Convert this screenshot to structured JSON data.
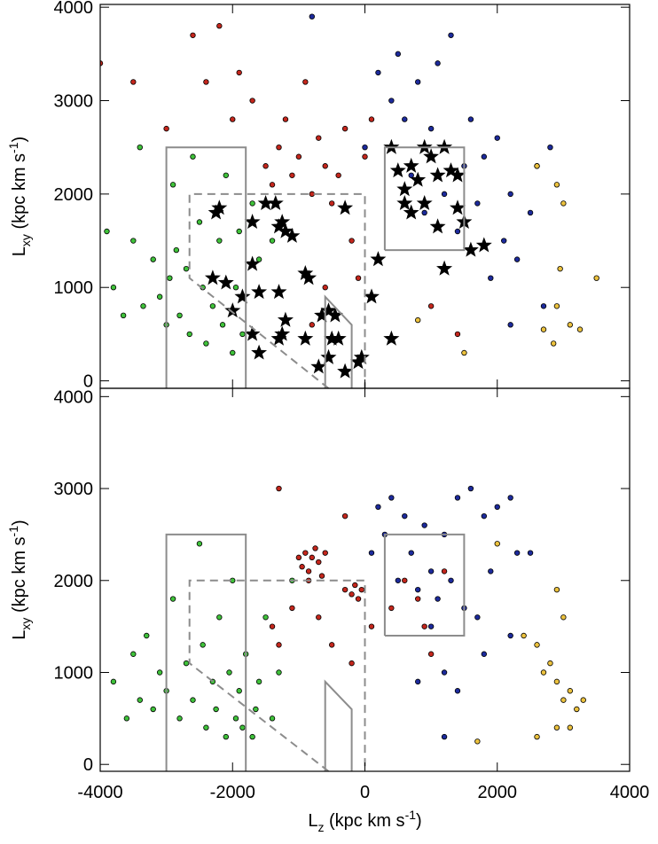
{
  "chart_data": [
    {
      "type": "scatter",
      "xlim": [
        -4000,
        4000
      ],
      "ylim": [
        -80,
        4030
      ],
      "xticks": [
        -4000,
        -2000,
        0,
        2000,
        4000
      ],
      "xtick_labels": false,
      "yticks": [
        0,
        1000,
        2000,
        3000,
        4000
      ],
      "ylabel": [
        "L",
        "xy",
        " (kpc km s",
        "-1",
        ")"
      ],
      "regions": [
        {
          "dash": false,
          "x": [
            -3000,
            -3000,
            -1800,
            -1800
          ],
          "y": [
            -80,
            2500,
            2500,
            -80
          ]
        },
        {
          "dash": true,
          "x": [
            -550,
            -2650,
            -2650,
            0,
            0
          ],
          "y": [
            -80,
            1100,
            2000,
            2000,
            -80
          ]
        },
        {
          "dash": false,
          "x": [
            -600,
            -600,
            -200,
            -200
          ],
          "y": [
            -80,
            900,
            600,
            -80
          ]
        },
        {
          "dash": false,
          "x": [
            300,
            300,
            1500,
            1500,
            300
          ],
          "y": [
            1400,
            2500,
            2500,
            1400,
            1400
          ]
        }
      ],
      "series": [
        {
          "color": "#3fc23a",
          "marker": "circle",
          "x": [
            -3900,
            -3800,
            -3650,
            -3500,
            -3400,
            -3350,
            -3200,
            -3100,
            -3000,
            -2950,
            -2900,
            -2850,
            -2800,
            -2700,
            -2650,
            -2600,
            -2500,
            -2450,
            -2400,
            -2300,
            -2200,
            -2150,
            -2100,
            -2000,
            -1950,
            -1900,
            -1850,
            -1700,
            -1600,
            -1400
          ],
          "values": [
            1600,
            1000,
            700,
            1500,
            2500,
            800,
            1300,
            900,
            600,
            1100,
            2100,
            1400,
            700,
            1200,
            500,
            2400,
            1700,
            1000,
            400,
            800,
            1500,
            600,
            2200,
            300,
            1000,
            1600,
            500,
            1900,
            1300,
            1500
          ]
        },
        {
          "color": "#c4261c",
          "marker": "circle",
          "x": [
            -4000,
            -3500,
            -3000,
            -2600,
            -2400,
            -2200,
            -2000,
            -1900,
            -1700,
            -1500,
            -1400,
            -1300,
            -1200,
            -1100,
            -1000,
            -900,
            -800,
            -700,
            -600,
            -500,
            -400,
            -300,
            -200,
            -100,
            0,
            100,
            -600,
            -800,
            1000,
            1400
          ],
          "values": [
            3400,
            3200,
            2700,
            3700,
            3200,
            3800,
            2800,
            3300,
            3000,
            2300,
            2100,
            2500,
            2800,
            2200,
            2400,
            3200,
            2000,
            2600,
            2300,
            1900,
            2200,
            2700,
            1500,
            1100,
            2400,
            2800,
            1000,
            600,
            800,
            500
          ]
        },
        {
          "color": "#1c2a9c",
          "marker": "circle",
          "x": [
            -800,
            0,
            200,
            400,
            500,
            600,
            700,
            800,
            900,
            1000,
            1100,
            1200,
            1300,
            1400,
            1500,
            1600,
            1700,
            1800,
            1900,
            2000,
            2100,
            2200,
            2300,
            2500,
            2600,
            2700,
            2800,
            2200
          ],
          "values": [
            3900,
            2500,
            3300,
            3000,
            3500,
            2800,
            2200,
            3200,
            1800,
            2700,
            3400,
            2000,
            3700,
            1600,
            2300,
            2800,
            1900,
            2400,
            1100,
            2600,
            1500,
            2000,
            1300,
            1800,
            2300,
            800,
            2500,
            600
          ]
        },
        {
          "color": "#ecc23e",
          "marker": "circle",
          "x": [
            2600,
            2900,
            2950,
            2900,
            3000,
            3100,
            2700,
            2850,
            3250,
            3500,
            800,
            1500
          ],
          "values": [
            2300,
            2100,
            1200,
            800,
            1900,
            600,
            550,
            400,
            550,
            1100,
            650,
            300
          ]
        },
        {
          "color": "#000000",
          "marker": "star",
          "x": [
            -2250,
            -2200,
            -1700,
            -1500,
            -1350,
            -1300,
            -1250,
            -1200,
            -1100,
            -1700,
            -2300,
            -2100,
            -2000,
            -1850,
            -1600,
            -1300,
            -900,
            -850,
            -1200,
            -1300,
            -1250,
            -1700,
            -1600,
            -900,
            -650,
            -550,
            -450,
            -500,
            -400,
            -550,
            -300,
            -700,
            -100,
            -50,
            -300,
            200,
            400,
            500,
            600,
            700,
            800,
            900,
            1000,
            1100,
            1200,
            1300,
            1400,
            700,
            900,
            600,
            1200,
            1600,
            1100,
            1400,
            1500,
            1800,
            100,
            400
          ],
          "values": [
            1800,
            1850,
            1700,
            1900,
            1900,
            1650,
            1700,
            1600,
            1550,
            1250,
            1100,
            1050,
            750,
            900,
            950,
            950,
            1150,
            1100,
            650,
            450,
            500,
            500,
            300,
            450,
            700,
            750,
            700,
            450,
            450,
            250,
            100,
            150,
            200,
            250,
            1850,
            1300,
            2500,
            2250,
            2050,
            2300,
            2150,
            2500,
            2400,
            2200,
            2500,
            2250,
            2200,
            1800,
            1900,
            1900,
            1200,
            1400,
            1650,
            1850,
            1700,
            1450,
            900,
            450
          ]
        }
      ]
    },
    {
      "type": "scatter",
      "xlim": [
        -4000,
        4000
      ],
      "ylim": [
        -75,
        4090
      ],
      "xticks": [
        -4000,
        -2000,
        0,
        2000,
        4000
      ],
      "xtick_labels": true,
      "yticks": [
        0,
        1000,
        2000,
        3000,
        4000
      ],
      "ylabel": [
        "L",
        "xy",
        " (kpc km s",
        "-1",
        ")"
      ],
      "xlabel": [
        "L",
        "z",
        " (kpc km s",
        "-1",
        ")"
      ],
      "regions": [
        {
          "dash": false,
          "x": [
            -3000,
            -3000,
            -1800,
            -1800
          ],
          "y": [
            -75,
            2500,
            2500,
            -75
          ]
        },
        {
          "dash": true,
          "x": [
            -550,
            -2650,
            -2650,
            0,
            0
          ],
          "y": [
            -75,
            1100,
            2000,
            2000,
            -75
          ]
        },
        {
          "dash": false,
          "x": [
            -600,
            -600,
            -200,
            -200
          ],
          "y": [
            -75,
            900,
            600,
            -75
          ]
        },
        {
          "dash": false,
          "x": [
            300,
            300,
            1500,
            1500,
            300
          ],
          "y": [
            1400,
            2500,
            2500,
            1400,
            1400
          ]
        }
      ],
      "series": [
        {
          "color": "#3fc23a",
          "marker": "circle",
          "x": [
            -3800,
            -3600,
            -3500,
            -3400,
            -3300,
            -3200,
            -3100,
            -3000,
            -2900,
            -2800,
            -2700,
            -2600,
            -2500,
            -2450,
            -2400,
            -2300,
            -2250,
            -2200,
            -2100,
            -2050,
            -2000,
            -1950,
            -1900,
            -1850,
            -1800,
            -1700,
            -1650,
            -1600,
            -1500,
            -1400,
            -1300,
            -1100
          ],
          "values": [
            900,
            500,
            1200,
            700,
            1400,
            600,
            1000,
            800,
            1800,
            500,
            1100,
            700,
            2400,
            1300,
            400,
            900,
            600,
            1600,
            300,
            1000,
            2000,
            500,
            800,
            400,
            1200,
            300,
            600,
            900,
            1600,
            500,
            1000,
            2000
          ]
        },
        {
          "color": "#c4261c",
          "marker": "circle",
          "x": [
            -1000,
            -950,
            -900,
            -850,
            -800,
            -750,
            -700,
            -650,
            -600,
            -850,
            -300,
            -200,
            -150,
            -100,
            -50,
            -1300,
            -1400,
            -1100,
            -700,
            -500,
            -300,
            100,
            400,
            600,
            800,
            1000,
            900,
            1200,
            -200,
            -1300
          ],
          "values": [
            2250,
            2150,
            2300,
            2100,
            2250,
            2350,
            2200,
            2050,
            2300,
            2000,
            1900,
            1850,
            1950,
            1800,
            1900,
            3000,
            1500,
            1700,
            1600,
            1300,
            2700,
            1500,
            1700,
            2000,
            1800,
            1200,
            1500,
            2100,
            1100,
            1300
          ]
        },
        {
          "color": "#1c2a9c",
          "marker": "circle",
          "x": [
            100,
            200,
            300,
            400,
            500,
            600,
            700,
            800,
            900,
            1000,
            1100,
            1200,
            1300,
            1400,
            1500,
            1600,
            1700,
            1800,
            1900,
            2000,
            2200,
            2300,
            2500,
            1000,
            1200,
            1400,
            800,
            1800,
            2200,
            1200
          ],
          "values": [
            2300,
            2800,
            2500,
            2900,
            2000,
            2700,
            2300,
            1900,
            2600,
            2100,
            1800,
            2500,
            2000,
            2900,
            1700,
            3000,
            1600,
            2700,
            2100,
            2800,
            2900,
            2300,
            2300,
            1500,
            1000,
            800,
            900,
            1200,
            1400,
            300
          ]
        },
        {
          "color": "#ecc23e",
          "marker": "circle",
          "x": [
            2000,
            2400,
            2600,
            2700,
            2800,
            2900,
            3000,
            3100,
            3200,
            3300,
            2900,
            3100,
            2600,
            3000,
            1700,
            2900
          ],
          "values": [
            2400,
            1400,
            1300,
            1000,
            1100,
            900,
            700,
            800,
            600,
            700,
            400,
            400,
            300,
            1600,
            250,
            1900
          ]
        }
      ]
    }
  ]
}
